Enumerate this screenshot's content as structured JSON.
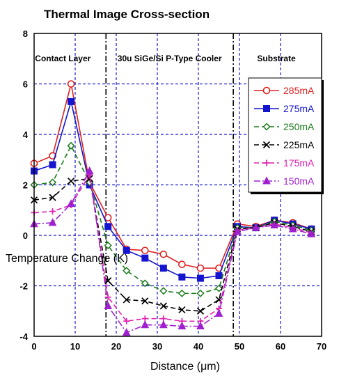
{
  "chart_data": {
    "type": "line",
    "title": "Thermal Image Cross-section",
    "xlabel": "Distance (μm)",
    "ylabel": "Temperature Change (K)",
    "xlim": [
      0,
      70
    ],
    "ylim": [
      -4,
      8
    ],
    "xticks": [
      0,
      10,
      20,
      30,
      40,
      50,
      60,
      70
    ],
    "yticks": [
      -4,
      -2,
      0,
      2,
      4,
      6,
      8
    ],
    "grid": true,
    "legend_position": "top-right",
    "region_labels": [
      {
        "text": "Contact Layer",
        "x": 7
      },
      {
        "text": "30u SiGe/Si P-Type Cooler",
        "x": 33
      },
      {
        "text": "Substrate",
        "x": 59
      }
    ],
    "region_boundaries": [
      17.5,
      48.5
    ],
    "series": [
      {
        "name": "285mA",
        "color": "#e02020",
        "marker": "circle-open",
        "dash": "solid",
        "x": [
          0,
          4.5,
          9,
          13.5,
          18,
          22.5,
          27,
          31.5,
          36,
          40.5,
          45,
          49.5,
          54,
          58.5,
          63,
          67.5
        ],
        "y": [
          2.85,
          3.15,
          6.0,
          2.1,
          0.7,
          -0.55,
          -0.6,
          -0.75,
          -1.15,
          -1.3,
          -1.3,
          0.45,
          0.35,
          0.6,
          0.5,
          0.25
        ]
      },
      {
        "name": "275mA",
        "color": "#1515d0",
        "marker": "square",
        "dash": "solid",
        "x": [
          0,
          4.5,
          9,
          13.5,
          18,
          22.5,
          27,
          31.5,
          36,
          40.5,
          45,
          49.5,
          54,
          58.5,
          63,
          67.5
        ],
        "y": [
          2.55,
          2.8,
          5.3,
          2.0,
          0.35,
          -0.6,
          -0.9,
          -1.3,
          -1.65,
          -1.7,
          -1.6,
          0.35,
          0.3,
          0.6,
          0.45,
          0.25
        ]
      },
      {
        "name": "250mA",
        "color": "#1a7a1a",
        "marker": "diamond-open",
        "dash": "dash",
        "x": [
          0,
          4.5,
          9,
          13.5,
          18,
          22.5,
          27,
          31.5,
          36,
          40.5,
          45,
          49.5,
          54,
          58.5,
          63,
          67.5
        ],
        "y": [
          2.0,
          2.1,
          3.55,
          2.1,
          -0.4,
          -1.4,
          -1.9,
          -2.2,
          -2.3,
          -2.3,
          -2.1,
          0.3,
          0.3,
          0.55,
          0.4,
          0.2
        ]
      },
      {
        "name": "225mA",
        "color": "#000000",
        "marker": "x",
        "dash": "dash",
        "x": [
          0,
          4.5,
          9,
          13.5,
          18,
          22.5,
          27,
          31.5,
          36,
          40.5,
          45,
          49.5,
          54,
          58.5,
          63,
          67.5
        ],
        "y": [
          1.4,
          1.5,
          2.15,
          2.25,
          -1.8,
          -2.55,
          -2.6,
          -2.8,
          -2.95,
          -3.0,
          -2.55,
          0.25,
          0.3,
          0.5,
          0.35,
          0.15
        ]
      },
      {
        "name": "175mA",
        "color": "#e020b0",
        "marker": "plus",
        "dash": "dash",
        "x": [
          0,
          4.5,
          9,
          13.5,
          18,
          22.5,
          27,
          31.5,
          36,
          40.5,
          45,
          49.5,
          54,
          58.5,
          63,
          67.5
        ],
        "y": [
          0.9,
          0.95,
          1.2,
          2.4,
          -2.45,
          -3.4,
          -3.3,
          -3.3,
          -3.4,
          -3.4,
          -2.9,
          0.2,
          0.3,
          0.45,
          0.3,
          0.1
        ]
      },
      {
        "name": "150mA",
        "color": "#a020d0",
        "marker": "triangle",
        "dash": "dashdot",
        "x": [
          0,
          4.5,
          9,
          13.5,
          18,
          22.5,
          27,
          31.5,
          36,
          40.5,
          45,
          49.5,
          54,
          58.5,
          63,
          67.5
        ],
        "y": [
          0.45,
          0.5,
          1.25,
          2.55,
          -2.8,
          -3.85,
          -3.55,
          -3.55,
          -3.6,
          -3.6,
          -3.1,
          0.15,
          0.3,
          0.4,
          0.25,
          0.05
        ]
      }
    ]
  }
}
